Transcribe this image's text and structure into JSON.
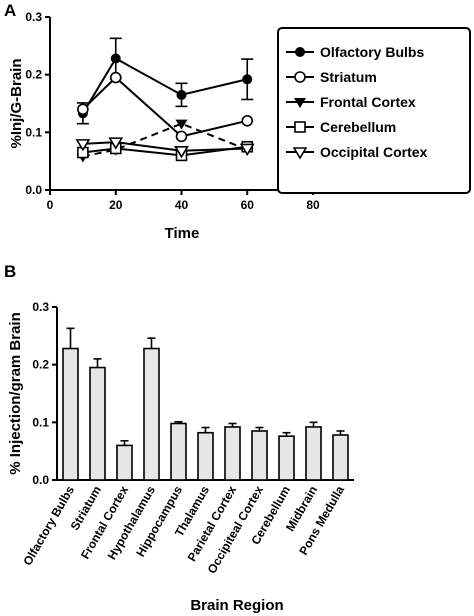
{
  "chart_data": [
    {
      "panel": "A",
      "type": "line",
      "xlabel": "Time",
      "ylabel": "%Inj/G-Brain",
      "xlim": [
        0,
        80
      ],
      "ylim": [
        0,
        0.3
      ],
      "xticks": [
        0,
        20,
        40,
        60,
        80
      ],
      "yticks": [
        0.0,
        0.1,
        0.2,
        0.3
      ],
      "grid": false,
      "legend_position": "right",
      "series": [
        {
          "name": "Olfactory Bulbs",
          "marker": "filled-circle",
          "dash": "solid",
          "x": [
            10,
            20,
            40,
            60
          ],
          "y": [
            0.133,
            0.228,
            0.165,
            0.192
          ],
          "err": [
            0.018,
            0.035,
            0.02,
            0.035
          ]
        },
        {
          "name": "Striatum",
          "marker": "open-circle",
          "dash": "solid",
          "x": [
            10,
            20,
            40,
            60
          ],
          "y": [
            0.14,
            0.195,
            0.093,
            0.12
          ],
          "err": [
            0,
            0,
            0,
            0
          ]
        },
        {
          "name": "Frontal Cortex",
          "marker": "filled-triangle-down",
          "dash": "dashed",
          "x": [
            10,
            20,
            40,
            60
          ],
          "y": [
            0.058,
            0.07,
            0.115,
            0.07
          ],
          "err": [
            0,
            0,
            0,
            0
          ]
        },
        {
          "name": "Cerebellum",
          "marker": "open-square",
          "dash": "solid",
          "x": [
            10,
            20,
            40,
            60
          ],
          "y": [
            0.065,
            0.072,
            0.06,
            0.075
          ],
          "err": [
            0,
            0,
            0,
            0
          ]
        },
        {
          "name": "Occipital Cortex",
          "marker": "open-triangle-down",
          "dash": "solid",
          "x": [
            10,
            20,
            40,
            60
          ],
          "y": [
            0.08,
            0.083,
            0.068,
            0.072
          ],
          "err": [
            0,
            0,
            0,
            0
          ]
        }
      ]
    },
    {
      "panel": "B",
      "type": "bar",
      "xlabel": "Brain Region",
      "ylabel": "% Injection/gram Brain",
      "ylim": [
        0,
        0.3
      ],
      "yticks": [
        0.0,
        0.1,
        0.2,
        0.3
      ],
      "grid": false,
      "categories": [
        "Olfactory Bulbs",
        "Striatum",
        "Frontal Cortex",
        "Hypothalamus",
        "Hippocampus",
        "Thalamus",
        "Parietal Cortex",
        "Occipiteal Cortex",
        "Cerebellum",
        "Midbrain",
        "Pons Medulla"
      ],
      "values": [
        0.228,
        0.195,
        0.06,
        0.228,
        0.098,
        0.082,
        0.092,
        0.085,
        0.076,
        0.092,
        0.078
      ],
      "errors": [
        0.035,
        0.015,
        0.008,
        0.018,
        0.003,
        0.009,
        0.006,
        0.006,
        0.006,
        0.008,
        0.007
      ]
    }
  ]
}
